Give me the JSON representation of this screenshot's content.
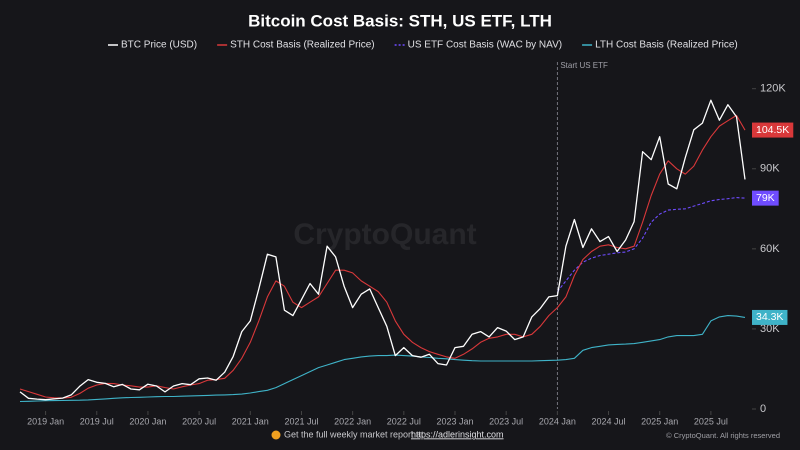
{
  "chart_data": {
    "type": "line",
    "title": "Bitcoin Cost Basis: STH, US ETF, LTH",
    "watermark": "CryptoQuant",
    "annotation": {
      "x": "2024-01",
      "text": "Start US ETF"
    },
    "footer": {
      "text": "Get the full weekly market report at ",
      "link": "https://adlerinsight.com",
      "copyright": "© CryptoQuant. All rights reserved"
    },
    "x": [
      "2018-10",
      "2018-11",
      "2018-12",
      "2019-01",
      "2019-02",
      "2019-03",
      "2019-04",
      "2019-05",
      "2019-06",
      "2019-07",
      "2019-08",
      "2019-09",
      "2019-10",
      "2019-11",
      "2019-12",
      "2020-01",
      "2020-02",
      "2020-03",
      "2020-04",
      "2020-05",
      "2020-06",
      "2020-07",
      "2020-08",
      "2020-09",
      "2020-10",
      "2020-11",
      "2020-12",
      "2021-01",
      "2021-02",
      "2021-03",
      "2021-04",
      "2021-05",
      "2021-06",
      "2021-07",
      "2021-08",
      "2021-09",
      "2021-10",
      "2021-11",
      "2021-12",
      "2022-01",
      "2022-02",
      "2022-03",
      "2022-04",
      "2022-05",
      "2022-06",
      "2022-07",
      "2022-08",
      "2022-09",
      "2022-10",
      "2022-11",
      "2022-12",
      "2023-01",
      "2023-02",
      "2023-03",
      "2023-04",
      "2023-05",
      "2023-06",
      "2023-07",
      "2023-08",
      "2023-09",
      "2023-10",
      "2023-11",
      "2023-12",
      "2024-01",
      "2024-02",
      "2024-03",
      "2024-04",
      "2024-05",
      "2024-06",
      "2024-07",
      "2024-08",
      "2024-09",
      "2024-10",
      "2024-11",
      "2024-12",
      "2025-01",
      "2025-02",
      "2025-03",
      "2025-04",
      "2025-05",
      "2025-06",
      "2025-07",
      "2025-08",
      "2025-09",
      "2025-10",
      "2025-11"
    ],
    "series": [
      {
        "name": "BTC Price (USD)",
        "color": "#ffffff",
        "dash": false,
        "values": [
          6400,
          4000,
          3700,
          3500,
          3800,
          4100,
          5300,
          8500,
          11000,
          10000,
          9600,
          8300,
          9200,
          7500,
          7200,
          9300,
          8600,
          6400,
          8600,
          9500,
          9100,
          11300,
          11600,
          10800,
          13800,
          19700,
          29000,
          33000,
          45000,
          58000,
          57000,
          37000,
          35000,
          41000,
          47000,
          43000,
          61000,
          57000,
          46000,
          38000,
          43000,
          45000,
          38000,
          31000,
          20000,
          23000,
          20000,
          19400,
          20500,
          17000,
          16500,
          23000,
          23500,
          28000,
          29000,
          27000,
          30500,
          29200,
          26000,
          27000,
          34500,
          37700,
          42000,
          42500,
          61000,
          71000,
          60500,
          67500,
          62700,
          64600,
          59000,
          63300,
          70200,
          96400,
          93400,
          102000,
          84300,
          82500,
          94200,
          104600,
          107100,
          115700,
          108200,
          114000,
          109500,
          86000
        ]
      },
      {
        "name": "STH Cost Basis (Realized Price)",
        "color": "#d9383a",
        "dash": false,
        "end_label": "104.5K",
        "values": [
          7500,
          6500,
          5500,
          4500,
          4200,
          4100,
          4400,
          5800,
          7800,
          9000,
          9600,
          9500,
          9000,
          8700,
          8200,
          8200,
          8700,
          8000,
          7500,
          8300,
          9000,
          9500,
          10800,
          11000,
          11500,
          14500,
          19000,
          25000,
          33000,
          42000,
          48000,
          46000,
          40000,
          38000,
          40000,
          42000,
          47000,
          52000,
          52000,
          51000,
          48000,
          46000,
          44000,
          40000,
          33000,
          28000,
          25000,
          23000,
          21500,
          20500,
          19500,
          19000,
          20500,
          22500,
          25000,
          26500,
          27000,
          28000,
          28000,
          27000,
          28000,
          31000,
          35000,
          38000,
          42000,
          50000,
          56000,
          59000,
          61000,
          61500,
          60500,
          60000,
          61000,
          70000,
          80000,
          88000,
          93000,
          90000,
          88000,
          91000,
          97000,
          102000,
          106000,
          108000,
          110000,
          104500
        ]
      },
      {
        "name": "US ETF Cost Basis (WAC by NAV)",
        "color": "#6f4cff",
        "dash": true,
        "end_label": "79K",
        "values": [
          null,
          null,
          null,
          null,
          null,
          null,
          null,
          null,
          null,
          null,
          null,
          null,
          null,
          null,
          null,
          null,
          null,
          null,
          null,
          null,
          null,
          null,
          null,
          null,
          null,
          null,
          null,
          null,
          null,
          null,
          null,
          null,
          null,
          null,
          null,
          null,
          null,
          null,
          null,
          null,
          null,
          null,
          null,
          null,
          null,
          null,
          null,
          null,
          null,
          null,
          null,
          null,
          null,
          null,
          null,
          null,
          null,
          null,
          null,
          null,
          null,
          null,
          null,
          44000,
          48000,
          52000,
          55000,
          56500,
          57500,
          58000,
          58500,
          58800,
          60000,
          64000,
          70000,
          73000,
          74500,
          74800,
          75000,
          76000,
          77000,
          78000,
          78500,
          78800,
          79200,
          79000
        ]
      },
      {
        "name": "LTH Cost Basis (Realized Price)",
        "color": "#3fb3c8",
        "dash": false,
        "end_label": "34.3K",
        "values": [
          2800,
          2900,
          3000,
          3100,
          3150,
          3200,
          3250,
          3300,
          3400,
          3600,
          3800,
          4000,
          4200,
          4300,
          4400,
          4500,
          4600,
          4700,
          4700,
          4800,
          4900,
          5000,
          5100,
          5200,
          5300,
          5400,
          5600,
          6000,
          6500,
          7000,
          8000,
          9500,
          11000,
          12500,
          14000,
          15500,
          16500,
          17500,
          18500,
          19000,
          19500,
          19800,
          20000,
          20000,
          20200,
          20000,
          19800,
          19500,
          19300,
          19000,
          18800,
          18500,
          18300,
          18100,
          18000,
          18000,
          18000,
          18000,
          18000,
          18000,
          18000,
          18100,
          18200,
          18300,
          18500,
          19000,
          22000,
          23000,
          23500,
          24000,
          24200,
          24300,
          24500,
          25000,
          25500,
          26000,
          27000,
          27500,
          27500,
          27500,
          28000,
          33000,
          34500,
          35000,
          34800,
          34300
        ]
      }
    ],
    "ylim": [
      0,
      130000
    ],
    "yticks": [
      0,
      {
        "value": 30000,
        "label": "30K"
      },
      {
        "value": 60000,
        "label": "60K"
      },
      {
        "value": 90000,
        "label": "90K"
      },
      {
        "value": 120000,
        "label": "120K"
      }
    ],
    "xticks": [
      {
        "value": "2019-01",
        "label": "2019 Jan"
      },
      {
        "value": "2019-07",
        "label": "2019 Jul"
      },
      {
        "value": "2020-01",
        "label": "2020 Jan"
      },
      {
        "value": "2020-07",
        "label": "2020 Jul"
      },
      {
        "value": "2021-01",
        "label": "2021 Jan"
      },
      {
        "value": "2021-07",
        "label": "2021 Jul"
      },
      {
        "value": "2022-01",
        "label": "2022 Jan"
      },
      {
        "value": "2022-07",
        "label": "2022 Jul"
      },
      {
        "value": "2023-01",
        "label": "2023 Jan"
      },
      {
        "value": "2023-07",
        "label": "2023 Jul"
      },
      {
        "value": "2024-01",
        "label": "2024 Jan"
      },
      {
        "value": "2024-07",
        "label": "2024 Jul"
      },
      {
        "value": "2025-01",
        "label": "2025 Jan"
      },
      {
        "value": "2025-07",
        "label": "2025 Jul"
      }
    ],
    "grid": false,
    "legend": "top"
  }
}
